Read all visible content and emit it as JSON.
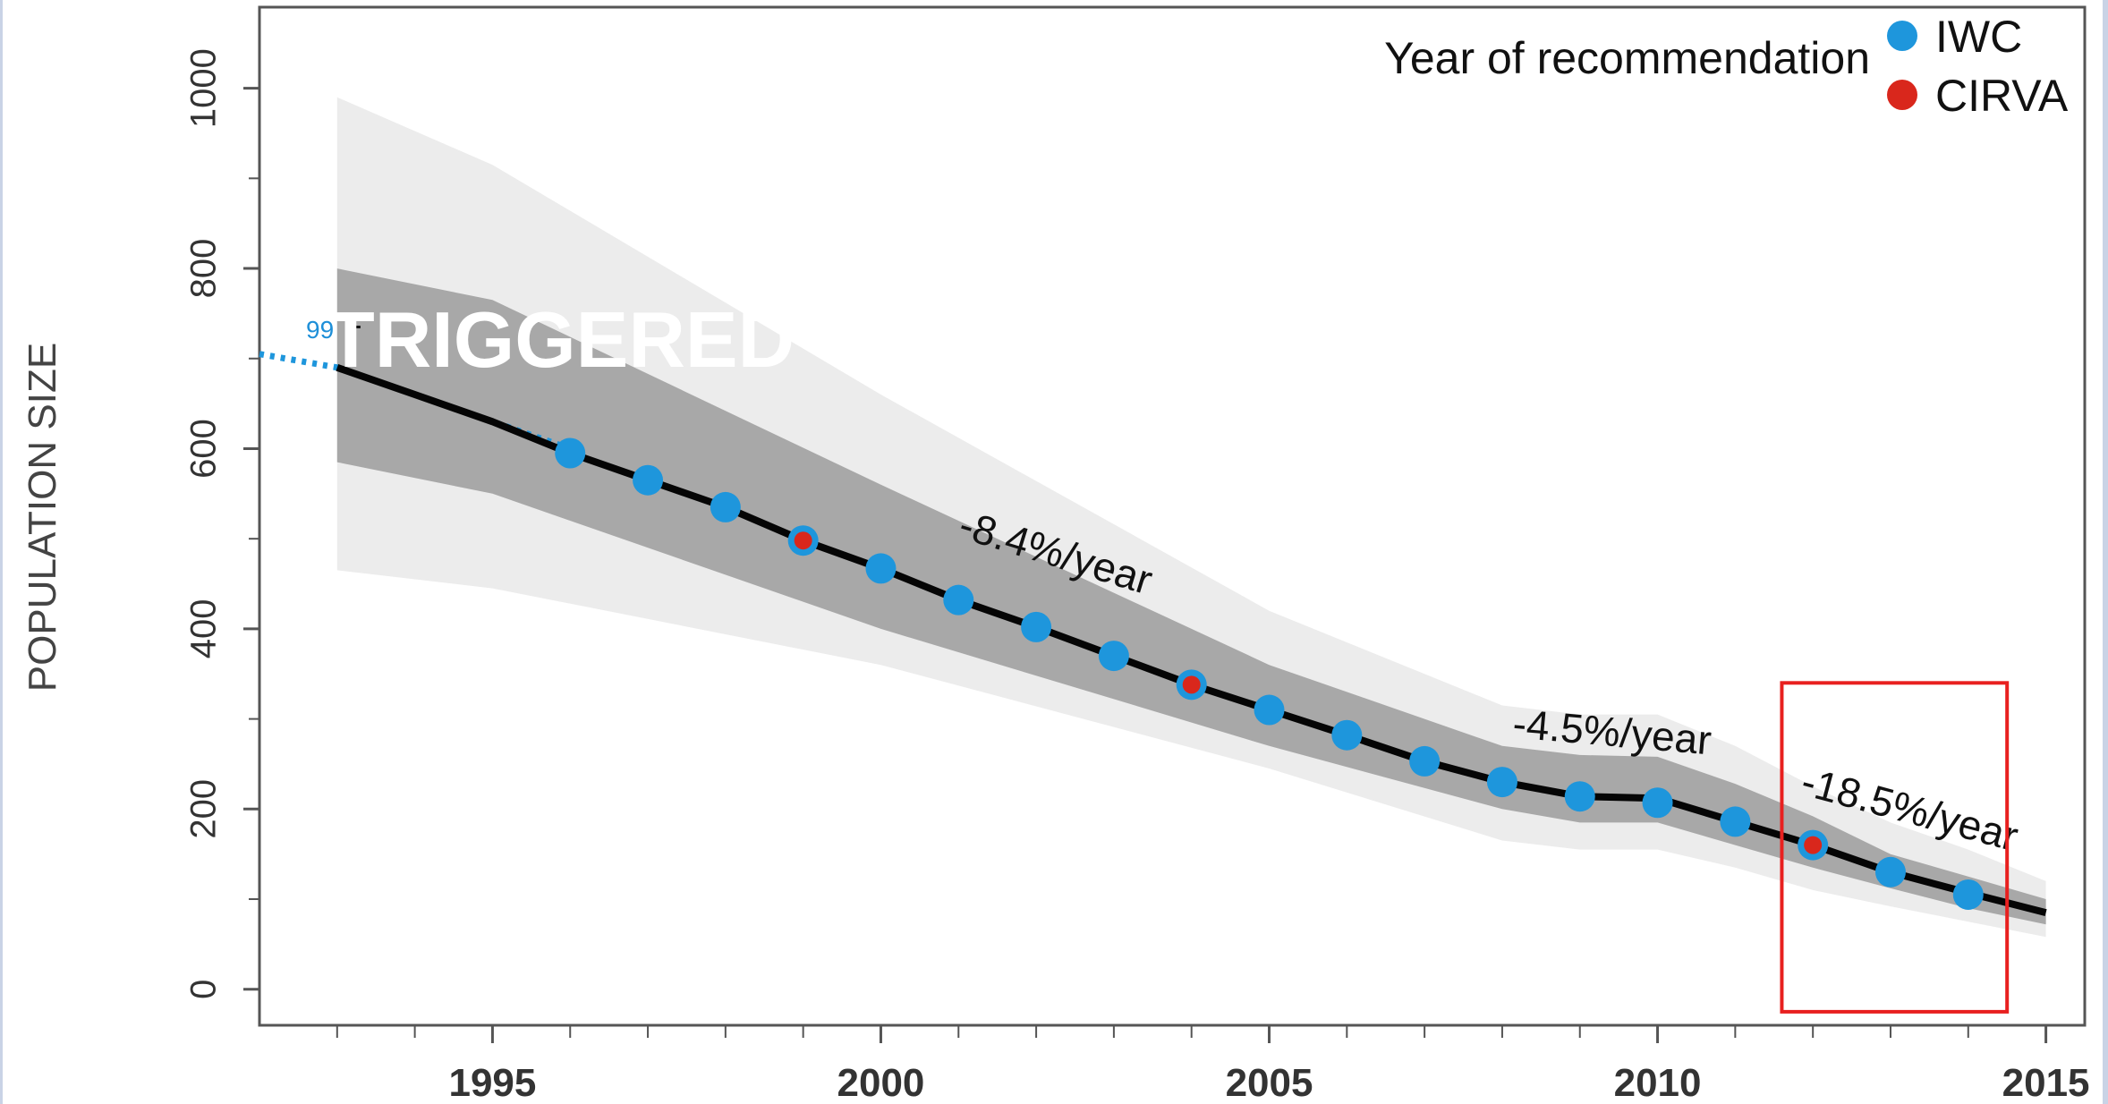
{
  "chart_data": {
    "type": "line",
    "title": "",
    "xlabel": "",
    "ylabel": "POPULATION SIZE",
    "xlim": [
      1992,
      2015.5
    ],
    "ylim": [
      -40,
      1090
    ],
    "x_ticks": [
      1995,
      2000,
      2005,
      2010,
      2015
    ],
    "y_ticks": [
      0,
      200,
      400,
      600,
      800,
      1000
    ],
    "grid": false,
    "legend": {
      "placement": "top-right",
      "title": "Year of recommendation",
      "entries": [
        {
          "label": "IWC",
          "color": "#1e96dc"
        },
        {
          "label": "CIRVA",
          "color": "#d9271c"
        }
      ]
    },
    "estimate_line": {
      "x": [
        1993,
        1994,
        1995,
        1996,
        1997,
        1998,
        1999,
        2000,
        2001,
        2002,
        2003,
        2004,
        2005,
        2006,
        2007,
        2008,
        2009,
        2010,
        2011,
        2012,
        2013,
        2014,
        2015
      ],
      "y": [
        690,
        660,
        630,
        595,
        565,
        535,
        498,
        467,
        432,
        402,
        370,
        338,
        310,
        282,
        253,
        230,
        214,
        212,
        186,
        160,
        130,
        107,
        85
      ]
    },
    "inner_band": {
      "x": [
        1993,
        1995,
        2000,
        2005,
        2008,
        2009,
        2010,
        2011,
        2012,
        2013,
        2014,
        2015
      ],
      "upper": [
        800,
        765,
        560,
        360,
        270,
        260,
        258,
        228,
        192,
        150,
        125,
        100
      ],
      "lower": [
        585,
        550,
        400,
        270,
        200,
        185,
        185,
        160,
        135,
        112,
        90,
        72
      ]
    },
    "outer_band": {
      "x": [
        1993,
        1995,
        2000,
        2005,
        2008,
        2009,
        2010,
        2011,
        2012,
        2013,
        2014,
        2015
      ],
      "upper": [
        990,
        915,
        660,
        420,
        315,
        305,
        305,
        270,
        225,
        185,
        155,
        120
      ],
      "lower": [
        465,
        445,
        360,
        245,
        165,
        155,
        155,
        135,
        110,
        92,
        75,
        58
      ]
    },
    "dashed_extension": {
      "x": [
        1992,
        1993,
        1994,
        1995,
        1996
      ],
      "y": [
        705,
        690,
        660,
        630,
        600
      ],
      "color": "#1e96dc"
    },
    "series": [
      {
        "name": "IWC",
        "color": "#1e96dc",
        "x": [
          1996,
          1997,
          1998,
          1999,
          2000,
          2001,
          2002,
          2003,
          2004,
          2005,
          2006,
          2007,
          2008,
          2009,
          2010,
          2011,
          2012,
          2013,
          2014
        ],
        "y": [
          595,
          565,
          535,
          498,
          467,
          432,
          402,
          370,
          338,
          310,
          282,
          253,
          230,
          214,
          207,
          186,
          160,
          130,
          105
        ]
      },
      {
        "name": "CIRVA",
        "color": "#d9271c",
        "x": [
          1999,
          2004,
          2012
        ],
        "y": [
          498,
          338,
          160
        ]
      }
    ],
    "annotations": [
      {
        "text": "-8.4%/year",
        "x": 2002.2,
        "y": 470,
        "angle": 17
      },
      {
        "text": "-4.5%/year",
        "x": 2009.4,
        "y": 270,
        "angle": 5
      },
      {
        "text": "-18.5%/year",
        "x": 2013.2,
        "y": 185,
        "angle": 15
      }
    ],
    "highlight_box": {
      "x0": 2011.6,
      "x1": 2014.5,
      "y0": -25,
      "y1": 340,
      "color": "#e8201f"
    },
    "overlay_text": "TRIGGERED",
    "small_label": "99"
  }
}
